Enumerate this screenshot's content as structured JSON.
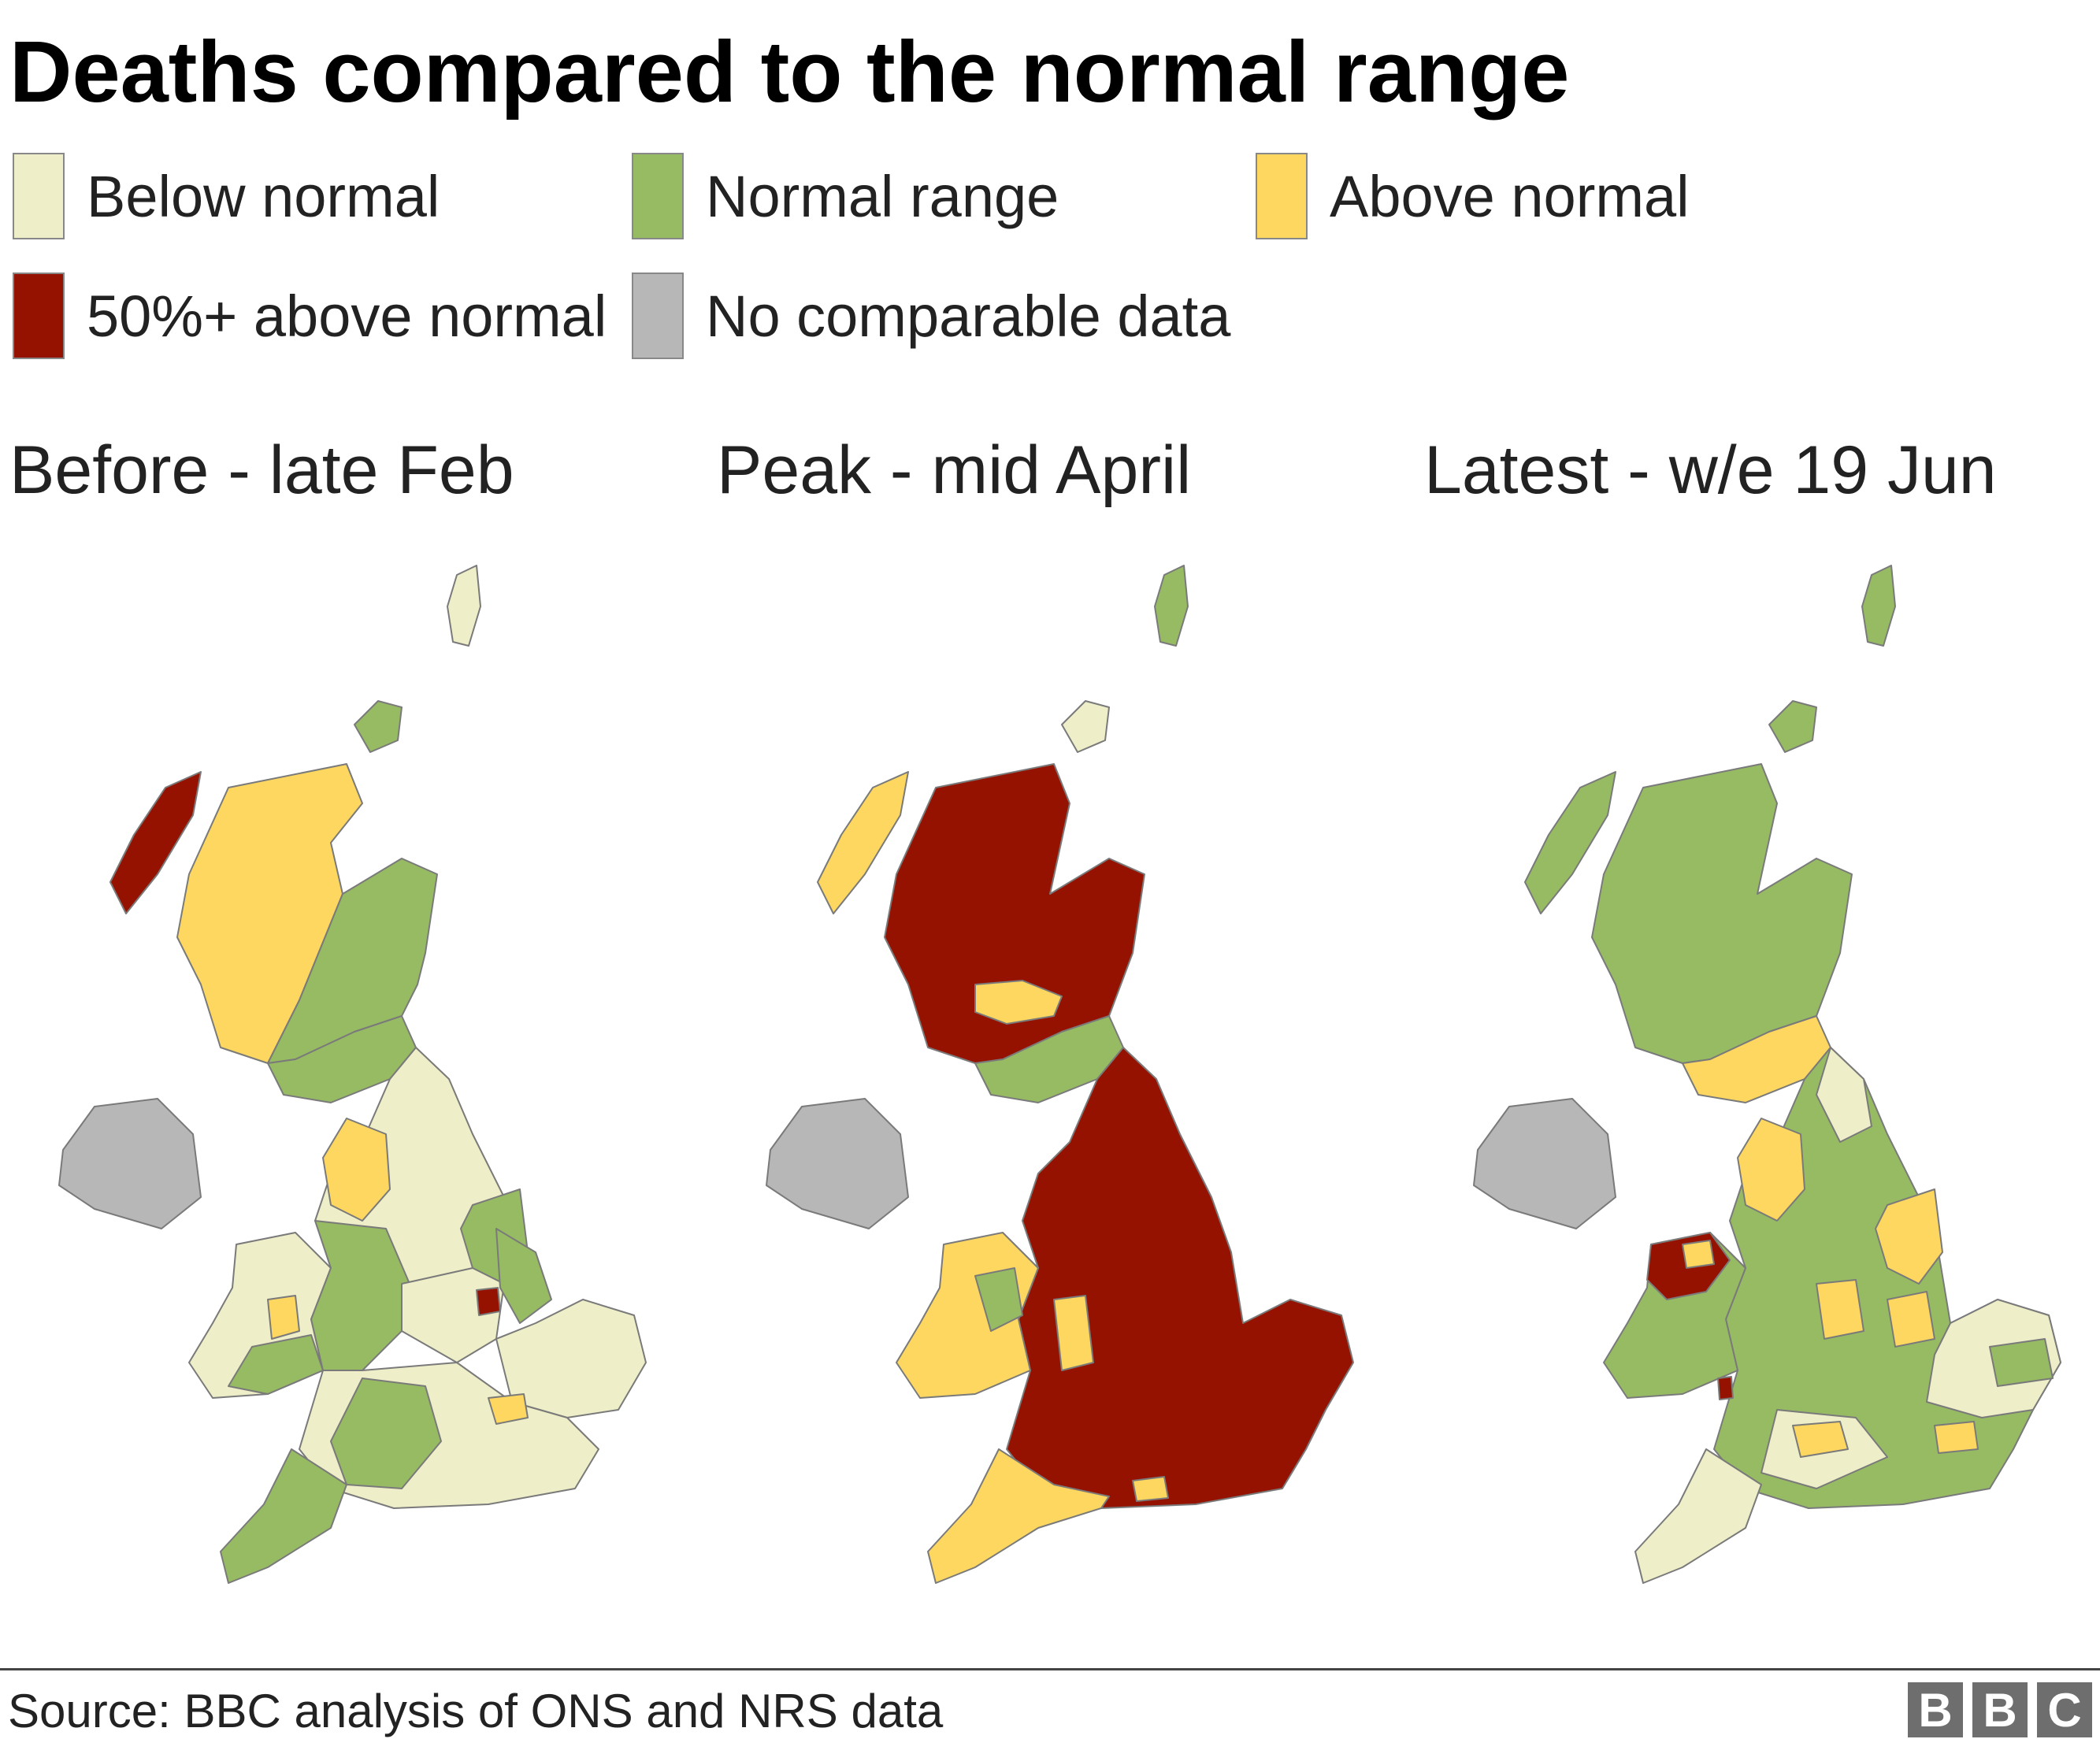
{
  "title": "Deaths compared to the normal range",
  "legend": [
    {
      "label": "Below normal",
      "color": "#eeeec8"
    },
    {
      "label": "Normal range",
      "color": "#96bb63"
    },
    {
      "label": "Above normal",
      "color": "#fdd75f"
    },
    {
      "label": "50%+ above normal",
      "color": "#961200"
    },
    {
      "label": "No comparable data",
      "color": "#b7b7b7"
    }
  ],
  "panels": [
    {
      "title": "Before - late Feb"
    },
    {
      "title": "Peak - mid April"
    },
    {
      "title": "Latest - w/e 19 Jun"
    }
  ],
  "source": "Source: BBC analysis of ONS and NRS data",
  "logo": [
    "B",
    "B",
    "C"
  ]
}
